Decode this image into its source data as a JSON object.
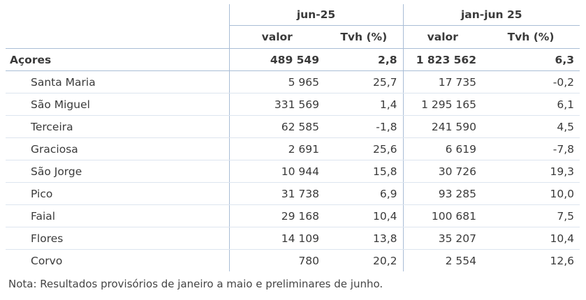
{
  "header": {
    "groups": [
      "jun-25",
      "jan-jun 25"
    ],
    "subheaders": [
      "valor",
      "Tvh (%)",
      "valor",
      "Tvh (%)"
    ]
  },
  "table": {
    "total": {
      "label": "Açores",
      "cells": [
        "489 549",
        "2,8",
        "1 823 562",
        "6,3"
      ]
    },
    "rows": [
      {
        "label": "Santa Maria",
        "cells": [
          "5 965",
          "25,7",
          "17 735",
          "-0,2"
        ]
      },
      {
        "label": "São Miguel",
        "cells": [
          "331 569",
          "1,4",
          "1 295 165",
          "6,1"
        ]
      },
      {
        "label": "Terceira",
        "cells": [
          "62 585",
          "-1,8",
          "241 590",
          "4,5"
        ]
      },
      {
        "label": "Graciosa",
        "cells": [
          "2 691",
          "25,6",
          "6 619",
          "-7,8"
        ]
      },
      {
        "label": "São Jorge",
        "cells": [
          "10 944",
          "15,8",
          "30 726",
          "19,3"
        ]
      },
      {
        "label": "Pico",
        "cells": [
          "31 738",
          "6,9",
          "93 285",
          "10,0"
        ]
      },
      {
        "label": "Faial",
        "cells": [
          "29 168",
          "10,4",
          "100 681",
          "7,5"
        ]
      },
      {
        "label": "Flores",
        "cells": [
          "14 109",
          "13,8",
          "35 207",
          "10,4"
        ]
      },
      {
        "label": "Corvo",
        "cells": [
          "780",
          "20,2",
          "2 554",
          "12,6"
        ]
      }
    ]
  },
  "note": "Nota: Resultados provisórios de janeiro a maio e preliminares de junho."
}
